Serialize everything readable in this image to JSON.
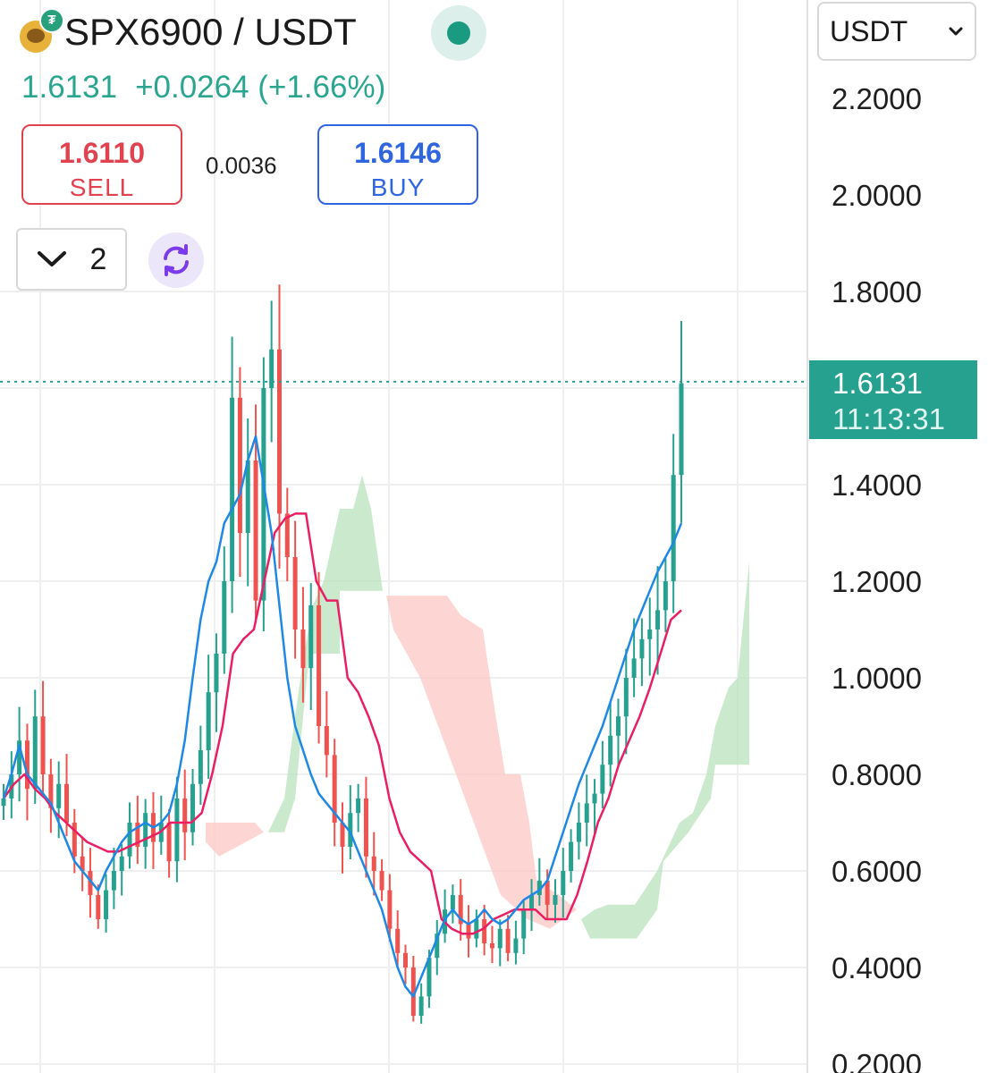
{
  "pair": {
    "symbol": "SPX6900 / USDT",
    "last_price": "1.6131",
    "change": "+0.0264",
    "change_pct": "(+1.66%)",
    "live": true
  },
  "trade": {
    "sell_price": "1.6110",
    "sell_label": "SELL",
    "spread": "0.0036",
    "buy_price": "1.6146",
    "buy_label": "BUY"
  },
  "toolbar": {
    "interval_value": "2",
    "quote_currency": "USDT"
  },
  "price_tag": {
    "price": "1.6131",
    "countdown": "11:13:31"
  },
  "colors": {
    "up": "#26a18f",
    "down": "#ef5350",
    "fast_line": "#1e88e5",
    "slow_line": "#e91e63",
    "cloud_bull": "#b9e3bc",
    "cloud_bear": "#fcc8c6",
    "sell": "#e0434f",
    "buy": "#2f66e0"
  },
  "chart_data": {
    "type": "candlestick",
    "y_axis": {
      "ticks": [
        "2.2000",
        "2.0000",
        "1.8000",
        "1.4000",
        "1.2000",
        "1.0000",
        "0.8000",
        "0.6000",
        "0.4000",
        "0.2000"
      ],
      "range": [
        0.2,
        2.2
      ],
      "position": "right"
    },
    "last_price_line": 1.6131,
    "grid": true,
    "close_series": [
      0.75,
      0.8,
      0.87,
      0.77,
      0.92,
      0.8,
      0.73,
      0.78,
      0.7,
      0.63,
      0.6,
      0.55,
      0.5,
      0.56,
      0.6,
      0.63,
      0.7,
      0.65,
      0.72,
      0.66,
      0.7,
      0.62,
      0.75,
      0.68,
      0.78,
      0.85,
      0.97,
      1.05,
      1.2,
      1.58,
      1.3,
      1.45,
      1.16,
      1.6,
      1.68,
      1.34,
      1.25,
      1.1,
      1.02,
      1.15,
      0.9,
      0.84,
      0.7,
      0.65,
      0.72,
      0.75,
      0.63,
      0.6,
      0.56,
      0.48,
      0.43,
      0.4,
      0.3,
      0.34,
      0.42,
      0.47,
      0.52,
      0.55,
      0.49,
      0.46,
      0.5,
      0.45,
      0.44,
      0.48,
      0.43,
      0.46,
      0.52,
      0.55,
      0.58,
      0.53,
      0.55,
      0.6,
      0.66,
      0.7,
      0.74,
      0.76,
      0.82,
      0.88,
      0.92,
      1.0,
      1.04,
      1.08,
      1.1,
      1.14,
      1.2,
      1.42,
      1.61
    ],
    "fast_line": [
      0.75,
      0.8,
      0.86,
      0.8,
      0.78,
      0.76,
      0.74,
      0.7,
      0.66,
      0.62,
      0.6,
      0.58,
      0.56,
      0.6,
      0.63,
      0.66,
      0.68,
      0.69,
      0.7,
      0.69,
      0.7,
      0.72,
      0.78,
      0.87,
      1.0,
      1.12,
      1.2,
      1.24,
      1.32,
      1.35,
      1.38,
      1.45,
      1.5,
      1.4,
      1.3,
      1.15,
      1.0,
      0.9,
      0.85,
      0.8,
      0.76,
      0.74,
      0.72,
      0.7,
      0.68,
      0.64,
      0.6,
      0.56,
      0.52,
      0.46,
      0.4,
      0.36,
      0.34,
      0.38,
      0.42,
      0.46,
      0.5,
      0.52,
      0.5,
      0.49,
      0.5,
      0.52,
      0.5,
      0.49,
      0.5,
      0.52,
      0.54,
      0.55,
      0.56,
      0.58,
      0.63,
      0.68,
      0.73,
      0.78,
      0.82,
      0.86,
      0.9,
      0.95,
      1.0,
      1.05,
      1.1,
      1.14,
      1.18,
      1.22,
      1.25,
      1.28,
      1.32
    ],
    "slow_line": [
      0.75,
      0.78,
      0.8,
      0.77,
      0.75,
      0.72,
      0.7,
      0.68,
      0.66,
      0.65,
      0.64,
      0.64,
      0.65,
      0.66,
      0.67,
      0.68,
      0.7,
      0.7,
      0.7,
      0.72,
      0.8,
      0.9,
      1.05,
      1.08,
      1.1,
      1.2,
      1.3,
      1.33,
      1.34,
      1.34,
      1.2,
      1.16,
      1.16,
      1.0,
      0.97,
      0.92,
      0.86,
      0.75,
      0.68,
      0.64,
      0.62,
      0.6,
      0.5,
      0.48,
      0.47,
      0.47,
      0.48,
      0.5,
      0.51,
      0.52,
      0.52,
      0.52,
      0.5,
      0.5,
      0.5,
      0.55,
      0.62,
      0.7,
      0.75,
      0.82,
      0.87,
      0.92,
      0.98,
      1.05,
      1.12,
      1.14
    ]
  }
}
